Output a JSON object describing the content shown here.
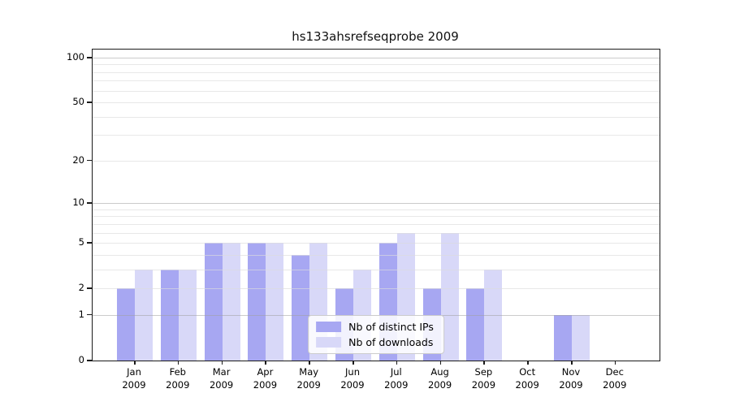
{
  "chart_data": {
    "type": "bar",
    "title": "hs133ahsrefseqprobe 2009",
    "categories": [
      {
        "month": "Jan",
        "year": "2009"
      },
      {
        "month": "Feb",
        "year": "2009"
      },
      {
        "month": "Mar",
        "year": "2009"
      },
      {
        "month": "Apr",
        "year": "2009"
      },
      {
        "month": "May",
        "year": "2009"
      },
      {
        "month": "Jun",
        "year": "2009"
      },
      {
        "month": "Jul",
        "year": "2009"
      },
      {
        "month": "Aug",
        "year": "2009"
      },
      {
        "month": "Sep",
        "year": "2009"
      },
      {
        "month": "Oct",
        "year": "2009"
      },
      {
        "month": "Nov",
        "year": "2009"
      },
      {
        "month": "Dec",
        "year": "2009"
      }
    ],
    "series": [
      {
        "name": "Nb of distinct IPs",
        "color": "#a7a7f2",
        "values": [
          2,
          3,
          5,
          5,
          4,
          2,
          5,
          2,
          2,
          0,
          1,
          0
        ]
      },
      {
        "name": "Nb of downloads",
        "color": "#d8d8f8",
        "values": [
          3,
          3,
          5,
          5,
          5,
          3,
          6,
          6,
          3,
          0,
          1,
          0
        ]
      }
    ],
    "yscale": "log1p",
    "yticks": [
      0,
      1,
      2,
      5,
      10,
      20,
      50,
      100
    ],
    "ylim": [
      0,
      110
    ],
    "grid": true,
    "legend_position": "lower center"
  }
}
